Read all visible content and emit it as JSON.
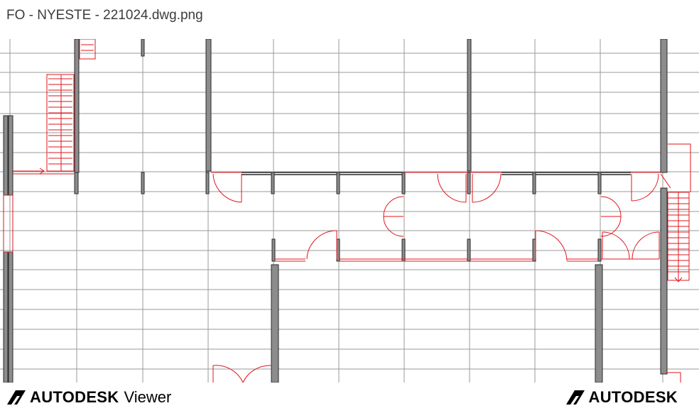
{
  "document": {
    "title": "FO - NYESTE - 221024.dwg.png"
  },
  "viewer": {
    "brand_left_logo": "AUTODESK",
    "brand_left_product": "Viewer",
    "brand_right_logo": "AUTODESK",
    "logo_icon": "autodesk-logo-icon"
  },
  "colors": {
    "grid": "#9a9a9a",
    "wall_fill": "#8c8c8c",
    "wall_stroke": "#2a2a2a",
    "annotation": "#e0141e"
  }
}
